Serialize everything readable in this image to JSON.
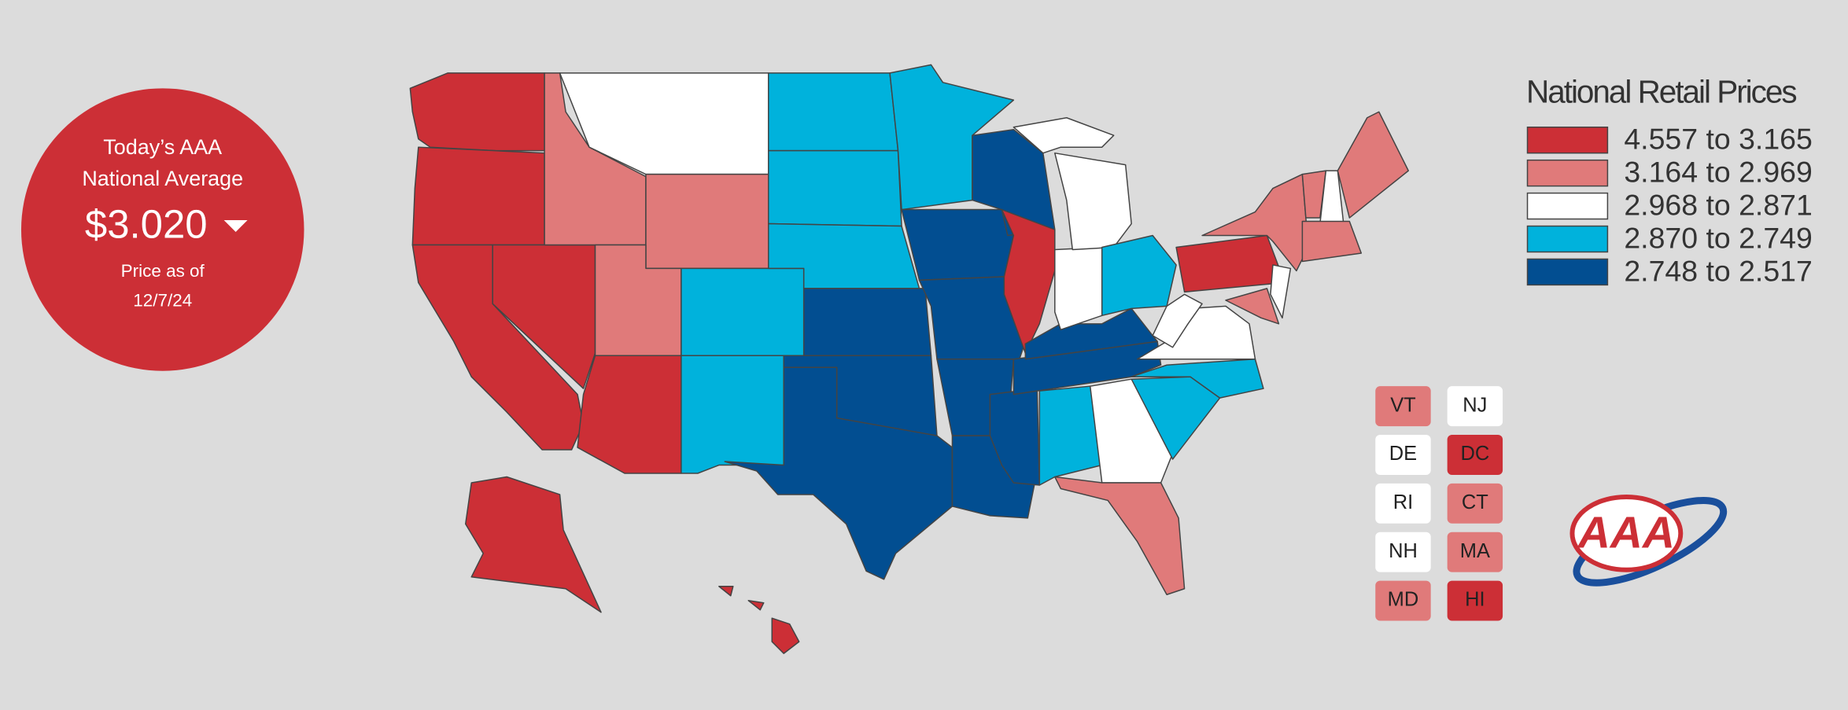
{
  "badge": {
    "line1": "Today’s AAA",
    "line2": "National Average",
    "price": "$3.020",
    "date_label": "Price as of",
    "date": "12/7/24"
  },
  "legend": {
    "title": "National Retail Prices",
    "items": [
      {
        "label": "4.557 to 3.165",
        "color": "#cc2f36"
      },
      {
        "label": "3.164 to 2.969",
        "color": "#e07a7a"
      },
      {
        "label": "2.968 to 2.871",
        "color": "#ffffff"
      },
      {
        "label": "2.870 to 2.749",
        "color": "#00b2dc"
      },
      {
        "label": "2.748 to 2.517",
        "color": "#024e91"
      }
    ]
  },
  "small_states": [
    {
      "label": "VT",
      "color": "#e07a7a"
    },
    {
      "label": "NJ",
      "color": "#ffffff"
    },
    {
      "label": "DE",
      "color": "#ffffff"
    },
    {
      "label": "DC",
      "color": "#cc2f36"
    },
    {
      "label": "RI",
      "color": "#ffffff"
    },
    {
      "label": "CT",
      "color": "#e07a7a"
    },
    {
      "label": "NH",
      "color": "#ffffff"
    },
    {
      "label": "MA",
      "color": "#e07a7a"
    },
    {
      "label": "MD",
      "color": "#e07a7a"
    },
    {
      "label": "HI",
      "color": "#cc2f36"
    }
  ],
  "logo": "AAA"
}
